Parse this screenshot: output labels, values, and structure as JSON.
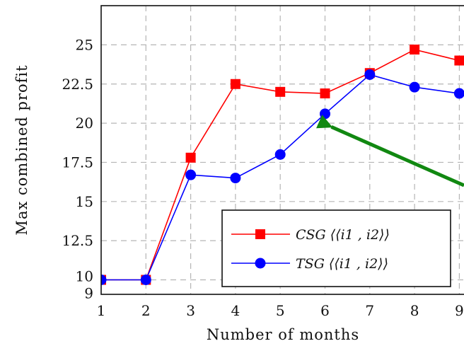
{
  "chart_data": {
    "type": "line",
    "title": "",
    "xlabel": "Number of months",
    "ylabel": "Max combined profit",
    "x": [
      1,
      2,
      3,
      4,
      5,
      6,
      7,
      8,
      9
    ],
    "xticks": [
      "1",
      "2",
      "3",
      "4",
      "5",
      "6",
      "7",
      "8",
      "9"
    ],
    "yticks": [
      {
        "value": 9,
        "label": "9"
      },
      {
        "value": 10,
        "label": "10"
      },
      {
        "value": 12.5,
        "label": "12.5"
      },
      {
        "value": 15,
        "label": "15"
      },
      {
        "value": 17.5,
        "label": "17.5"
      },
      {
        "value": 20,
        "label": "20"
      },
      {
        "value": 22.5,
        "label": "22.5"
      },
      {
        "value": 25,
        "label": "25"
      }
    ],
    "ylim": [
      9,
      27.5
    ],
    "grid": true,
    "legend_position": "bottom-right",
    "series": [
      {
        "name": "CSG ⟨⟨i1 , i2⟩⟩",
        "color": "#ff0000",
        "marker": "square",
        "values": [
          10,
          10,
          17.8,
          22.5,
          22.0,
          21.9,
          23.2,
          24.7,
          24.0
        ]
      },
      {
        "name": "TSG ⟨⟨i1 , i2⟩⟩",
        "color": "#0000ff",
        "marker": "circle",
        "values": [
          10,
          10,
          16.7,
          16.5,
          18.0,
          20.6,
          23.1,
          22.3,
          21.9
        ]
      }
    ],
    "annotations": [
      {
        "type": "arrow",
        "color": "#118811",
        "points_to": {
          "x": 6,
          "y": 19.9
        }
      }
    ]
  }
}
